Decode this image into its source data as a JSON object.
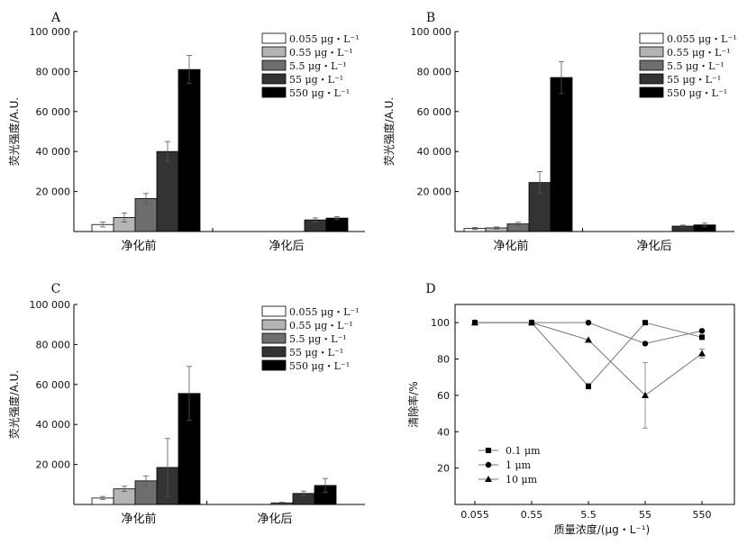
{
  "chart_data": [
    {
      "type": "bar",
      "panel": "A",
      "ylabel": "荧光强度/A.U.",
      "ylim": [
        0,
        100000
      ],
      "yticks": [
        "20 000",
        "40 000",
        "60 000",
        "80 000",
        "100 000"
      ],
      "categories": [
        "净化前",
        "净化后"
      ],
      "legend": "top-right",
      "series": [
        {
          "name": "0.055 μg・L⁻¹",
          "color": "#ffffff",
          "values": [
            3500,
            0
          ],
          "errors": [
            1200,
            0
          ]
        },
        {
          "name": "0.55 μg・L⁻¹",
          "color": "#b4b4b4",
          "values": [
            7000,
            0
          ],
          "errors": [
            2300,
            0
          ]
        },
        {
          "name": "5.5 μg・L⁻¹",
          "color": "#6e6e6e",
          "values": [
            16500,
            0
          ],
          "errors": [
            2500,
            0
          ]
        },
        {
          "name": "55 μg・L⁻¹",
          "color": "#333333",
          "values": [
            40000,
            5800
          ],
          "errors": [
            5000,
            1000
          ]
        },
        {
          "name": "550 μg・L⁻¹",
          "color": "#000000",
          "values": [
            81000,
            6700
          ],
          "errors": [
            7000,
            700
          ]
        }
      ]
    },
    {
      "type": "bar",
      "panel": "B",
      "ylabel": "荧光强度/A.U.",
      "ylim": [
        0,
        100000
      ],
      "yticks": [
        "20 000",
        "40 000",
        "60 000",
        "80 000",
        "100 000"
      ],
      "categories": [
        "净化前",
        "净化后"
      ],
      "legend": "top-right",
      "series": [
        {
          "name": "0.055 μg・L⁻¹",
          "color": "#ffffff",
          "values": [
            1500,
            0
          ],
          "errors": [
            500,
            0
          ]
        },
        {
          "name": "0.55 μg・L⁻¹",
          "color": "#b4b4b4",
          "values": [
            1800,
            0
          ],
          "errors": [
            500,
            0
          ]
        },
        {
          "name": "5.5 μg・L⁻¹",
          "color": "#6e6e6e",
          "values": [
            3800,
            0
          ],
          "errors": [
            800,
            0
          ]
        },
        {
          "name": "55 μg・L⁻¹",
          "color": "#333333",
          "values": [
            24500,
            2700
          ],
          "errors": [
            5500,
            500
          ]
        },
        {
          "name": "550 μg・L⁻¹",
          "color": "#000000",
          "values": [
            77000,
            3300
          ],
          "errors": [
            8000,
            900
          ]
        }
      ]
    },
    {
      "type": "bar",
      "panel": "C",
      "ylabel": "荧光强度/A.U.",
      "ylim": [
        0,
        100000
      ],
      "yticks": [
        "20 000",
        "40 000",
        "60 000",
        "80 000",
        "100 000"
      ],
      "categories": [
        "净化前",
        "净化后"
      ],
      "legend": "top-right",
      "series": [
        {
          "name": "0.055 μg・L⁻¹",
          "color": "#ffffff",
          "values": [
            3200,
            0
          ],
          "errors": [
            800,
            0
          ]
        },
        {
          "name": "0.55 μg・L⁻¹",
          "color": "#b4b4b4",
          "values": [
            7800,
            0
          ],
          "errors": [
            1300,
            0
          ]
        },
        {
          "name": "5.5 μg・L⁻¹",
          "color": "#6e6e6e",
          "values": [
            11800,
            800
          ],
          "errors": [
            2500,
            300
          ]
        },
        {
          "name": "55 μg・L⁻¹",
          "color": "#333333",
          "values": [
            18500,
            5500
          ],
          "errors": [
            14500,
            1200
          ]
        },
        {
          "name": "550 μg・L⁻¹",
          "color": "#000000",
          "values": [
            55500,
            9500
          ],
          "errors": [
            13500,
            3500
          ]
        }
      ]
    },
    {
      "type": "line",
      "panel": "D",
      "xlabel": "质量浓度/(μg・L⁻¹)",
      "ylabel": "清除率/%",
      "categories": [
        "0.055",
        "0.55",
        "5.5",
        "55",
        "550"
      ],
      "ylim": [
        0,
        110
      ],
      "yticks": [
        "20",
        "40",
        "60",
        "80",
        "100"
      ],
      "legend": "bottom-left",
      "series": [
        {
          "name": "0.1 μm",
          "marker": "square",
          "values": [
            100,
            100,
            65,
            100,
            92
          ],
          "errors": [
            0,
            0,
            1.5,
            0,
            0
          ]
        },
        {
          "name": "1 μm",
          "marker": "circle",
          "values": [
            100,
            100,
            100,
            88.5,
            95.5
          ],
          "errors": [
            0,
            0,
            0,
            0,
            0
          ]
        },
        {
          "name": "10 μm",
          "marker": "triangle",
          "values": [
            100,
            100,
            90.5,
            60,
            83
          ],
          "errors": [
            0,
            0,
            0,
            18,
            2.5
          ]
        }
      ]
    }
  ]
}
